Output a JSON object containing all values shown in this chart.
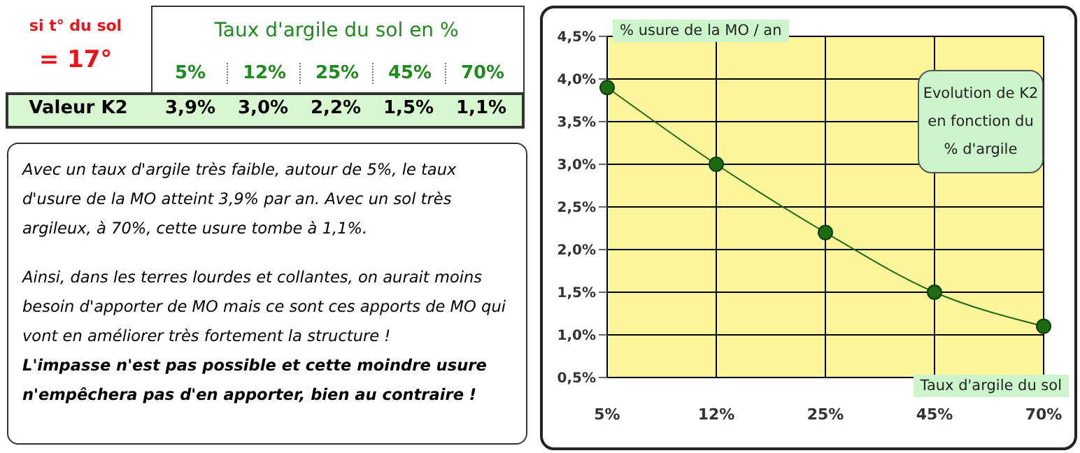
{
  "chart_data": {
    "type": "line",
    "title": "Evolution de K2 en fonction du % d'argile",
    "xlabel": "Taux d'argile du sol",
    "ylabel": "% usure de la MO / an",
    "categories": [
      "5%",
      "12%",
      "25%",
      "45%",
      "70%"
    ],
    "series": [
      {
        "color": "#1d6b12",
        "values": [
          3.9,
          3.0,
          2.2,
          1.5,
          1.1
        ]
      }
    ],
    "ylim": [
      0.5,
      4.5
    ],
    "yticks": [
      {
        "value": 0.5,
        "label": "0,5%"
      },
      {
        "value": 1.0,
        "label": "1,0%"
      },
      {
        "value": 1.5,
        "label": "1,5%"
      },
      {
        "value": 2.0,
        "label": "2,0%"
      },
      {
        "value": 2.5,
        "label": "2,5%"
      },
      {
        "value": 3.0,
        "label": "3,0%"
      },
      {
        "value": 3.5,
        "label": "3,5%"
      },
      {
        "value": 4.0,
        "label": "4,0%"
      },
      {
        "value": 4.5,
        "label": "4,5%"
      }
    ],
    "grid": true,
    "marker": "circle",
    "line_style": "solid",
    "annotations": [
      "si t° du sol",
      "= 17°",
      "Taux d'argile du sol en %",
      "Valeur K2",
      "Avec un taux d'argile très faible, autour de 5%, le taux d'usure de la MO atteint 3,9% par an. Avec un sol très argileux, à 70%, cette usure tombe à 1,1%.",
      "Ainsi, dans les terres lourdes et collantes, on aurait moins besoin d'apporter de MO mais ce sont ces apports de MO qui vont en améliorer très fortement la structure !",
      "L'impasse n'est pas possible et cette moindre usure n'empêchera pas d'en apporter, bien au contraire !",
      "3,9%",
      "3,0%",
      "2,2%",
      "1,5%",
      "1,1%"
    ]
  }
}
